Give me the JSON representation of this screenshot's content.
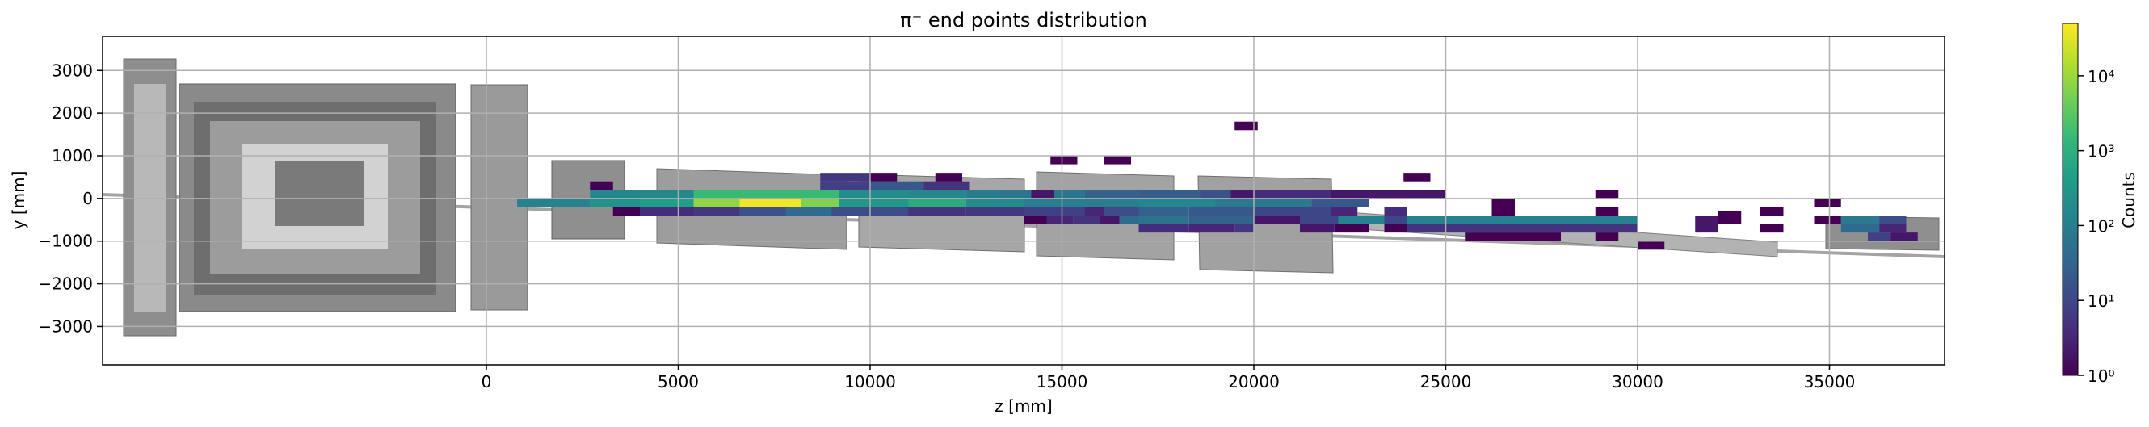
{
  "chart_data": {
    "type": "heatmap",
    "title": "π⁻ end points distribution",
    "xlabel": "z [mm]",
    "ylabel": "y [mm]",
    "xlim": [
      -10000,
      38000
    ],
    "ylim": [
      -3900,
      3800
    ],
    "x_ticks": [
      0,
      5000,
      10000,
      15000,
      20000,
      25000,
      30000,
      35000
    ],
    "x_tick_labels": [
      "0",
      "5000",
      "10000",
      "15000",
      "20000",
      "25000",
      "30000",
      "35000"
    ],
    "y_ticks": [
      3000,
      2000,
      1000,
      0,
      -1000,
      -2000,
      -3000
    ],
    "y_tick_labels": [
      "3000",
      "2000",
      "1000",
      "0",
      "−1000",
      "−2000",
      "−3000"
    ],
    "grid": true,
    "colorbar": {
      "label": "Counts",
      "scale": "log",
      "colormap": "viridis",
      "range": [
        1,
        50000
      ],
      "ticks": [
        1,
        10,
        100,
        1000,
        10000
      ],
      "tick_labels": [
        "10⁰",
        "10¹",
        "10²",
        "10³",
        "10⁴"
      ]
    },
    "background": "detector geometry outline (grey)",
    "cells": [
      {
        "z0": 2700,
        "z1": 3300,
        "y0": 200,
        "y1": 400,
        "counts": 1
      },
      {
        "z0": 3300,
        "z1": 3900,
        "y0": 0,
        "y1": 200,
        "counts": 3
      },
      {
        "z0": 3300,
        "z1": 4000,
        "y0": -400,
        "y1": -200,
        "counts": 1
      },
      {
        "z0": 4000,
        "z1": 5400,
        "y0": -400,
        "y1": -200,
        "counts": 4
      },
      {
        "z0": 5400,
        "z1": 6600,
        "y0": -400,
        "y1": -200,
        "counts": 6
      },
      {
        "z0": 6600,
        "z1": 7800,
        "y0": -400,
        "y1": -200,
        "counts": 15
      },
      {
        "z0": 7800,
        "z1": 9000,
        "y0": -400,
        "y1": -200,
        "counts": 40
      },
      {
        "z0": 9000,
        "z1": 11000,
        "y0": -400,
        "y1": -200,
        "counts": 12
      },
      {
        "z0": 11000,
        "z1": 12500,
        "y0": -400,
        "y1": -200,
        "counts": 5
      },
      {
        "z0": 800,
        "z1": 2700,
        "y0": -200,
        "y1": 0,
        "counts": 120
      },
      {
        "z0": 2700,
        "z1": 4000,
        "y0": -200,
        "y1": 0,
        "counts": 250
      },
      {
        "z0": 4000,
        "z1": 5400,
        "y0": -200,
        "y1": 0,
        "counts": 400
      },
      {
        "z0": 5400,
        "z1": 6600,
        "y0": -200,
        "y1": 0,
        "counts": 8000
      },
      {
        "z0": 6600,
        "z1": 8200,
        "y0": -200,
        "y1": 0,
        "counts": 40000
      },
      {
        "z0": 8200,
        "z1": 9200,
        "y0": -200,
        "y1": 0,
        "counts": 6000
      },
      {
        "z0": 9200,
        "z1": 11000,
        "y0": -200,
        "y1": 0,
        "counts": 300
      },
      {
        "z0": 11000,
        "z1": 12500,
        "y0": -200,
        "y1": 0,
        "counts": 800
      },
      {
        "z0": 12500,
        "z1": 14000,
        "y0": -200,
        "y1": 0,
        "counts": 200
      },
      {
        "z0": 14000,
        "z1": 17000,
        "y0": -200,
        "y1": 0,
        "counts": 100
      },
      {
        "z0": 17000,
        "z1": 19000,
        "y0": -200,
        "y1": 0,
        "counts": 150
      },
      {
        "z0": 19000,
        "z1": 21500,
        "y0": -200,
        "y1": 0,
        "counts": 80
      },
      {
        "z0": 21500,
        "z1": 23000,
        "y0": -200,
        "y1": 0,
        "counts": 20
      },
      {
        "z0": 2700,
        "z1": 5400,
        "y0": 0,
        "y1": 200,
        "counts": 150
      },
      {
        "z0": 5400,
        "z1": 9200,
        "y0": 0,
        "y1": 200,
        "counts": 1500
      },
      {
        "z0": 9200,
        "z1": 11000,
        "y0": 0,
        "y1": 200,
        "counts": 200
      },
      {
        "z0": 11000,
        "z1": 12500,
        "y0": 0,
        "y1": 200,
        "counts": 150
      },
      {
        "z0": 12500,
        "z1": 13400,
        "y0": 0,
        "y1": 200,
        "counts": 90
      },
      {
        "z0": 13400,
        "z1": 15600,
        "y0": 0,
        "y1": 200,
        "counts": 70
      },
      {
        "z0": 15600,
        "z1": 17000,
        "y0": 0,
        "y1": 200,
        "counts": 30
      },
      {
        "z0": 17000,
        "z1": 18600,
        "y0": 0,
        "y1": 200,
        "counts": 25
      },
      {
        "z0": 18600,
        "z1": 20000,
        "y0": 0,
        "y1": 200,
        "counts": 15
      },
      {
        "z0": 20000,
        "z1": 22000,
        "y0": 0,
        "y1": 200,
        "counts": 4
      },
      {
        "z0": 22000,
        "z1": 25000,
        "y0": 0,
        "y1": 200,
        "counts": 2
      },
      {
        "z0": 8700,
        "z1": 10000,
        "y0": 200,
        "y1": 400,
        "counts": 8
      },
      {
        "z0": 10000,
        "z1": 11400,
        "y0": 200,
        "y1": 400,
        "counts": 20
      },
      {
        "z0": 11400,
        "z1": 12600,
        "y0": 200,
        "y1": 400,
        "counts": 5
      },
      {
        "z0": 8700,
        "z1": 10000,
        "y0": 400,
        "y1": 600,
        "counts": 6
      },
      {
        "z0": 10000,
        "z1": 10700,
        "y0": 400,
        "y1": 600,
        "counts": 1
      },
      {
        "z0": 11700,
        "z1": 12400,
        "y0": 400,
        "y1": 600,
        "counts": 1
      },
      {
        "z0": 14200,
        "z1": 14800,
        "y0": 0,
        "y1": 200,
        "counts": 2
      },
      {
        "z0": 19400,
        "z1": 20000,
        "y0": 0,
        "y1": 200,
        "counts": 2
      },
      {
        "z0": 14700,
        "z1": 15400,
        "y0": 800,
        "y1": 1000,
        "counts": 1
      },
      {
        "z0": 16100,
        "z1": 16800,
        "y0": 800,
        "y1": 1000,
        "counts": 1
      },
      {
        "z0": 19500,
        "z1": 20100,
        "y0": 1600,
        "y1": 1800,
        "counts": 1
      },
      {
        "z0": 23900,
        "z1": 24600,
        "y0": 400,
        "y1": 600,
        "counts": 1
      },
      {
        "z0": 28900,
        "z1": 29500,
        "y0": 0,
        "y1": 200,
        "counts": 1
      },
      {
        "z0": 12500,
        "z1": 14000,
        "y0": -400,
        "y1": -200,
        "counts": 6
      },
      {
        "z0": 14000,
        "z1": 15600,
        "y0": -400,
        "y1": -200,
        "counts": 8
      },
      {
        "z0": 15600,
        "z1": 16100,
        "y0": -400,
        "y1": -200,
        "counts": 3
      },
      {
        "z0": 16100,
        "z1": 17000,
        "y0": -400,
        "y1": -200,
        "counts": 12
      },
      {
        "z0": 17000,
        "z1": 18300,
        "y0": -400,
        "y1": -200,
        "counts": 30
      },
      {
        "z0": 18300,
        "z1": 20000,
        "y0": -400,
        "y1": -200,
        "counts": 20
      },
      {
        "z0": 20000,
        "z1": 22000,
        "y0": -400,
        "y1": -200,
        "counts": 10
      },
      {
        "z0": 22000,
        "z1": 22700,
        "y0": -400,
        "y1": -200,
        "counts": 3
      },
      {
        "z0": 14000,
        "z1": 14600,
        "y0": -600,
        "y1": -400,
        "counts": 1
      },
      {
        "z0": 14600,
        "z1": 15300,
        "y0": -600,
        "y1": -400,
        "counts": 3
      },
      {
        "z0": 15300,
        "z1": 16000,
        "y0": -600,
        "y1": -400,
        "counts": 5
      },
      {
        "z0": 16000,
        "z1": 16500,
        "y0": -600,
        "y1": -400,
        "counts": 2
      },
      {
        "z0": 16500,
        "z1": 17000,
        "y0": -600,
        "y1": -400,
        "counts": 40
      },
      {
        "z0": 17000,
        "z1": 18300,
        "y0": -600,
        "y1": -400,
        "counts": 60
      },
      {
        "z0": 18300,
        "z1": 20000,
        "y0": -600,
        "y1": -400,
        "counts": 30
      },
      {
        "z0": 20000,
        "z1": 21200,
        "y0": -600,
        "y1": -400,
        "counts": 2
      },
      {
        "z0": 21200,
        "z1": 22200,
        "y0": -600,
        "y1": -400,
        "counts": 10
      },
      {
        "z0": 22200,
        "z1": 23400,
        "y0": -600,
        "y1": -400,
        "counts": 120
      },
      {
        "z0": 17000,
        "z1": 18300,
        "y0": -800,
        "y1": -600,
        "counts": 4
      },
      {
        "z0": 18300,
        "z1": 19500,
        "y0": -800,
        "y1": -600,
        "counts": 3
      },
      {
        "z0": 19500,
        "z1": 20000,
        "y0": -800,
        "y1": -600,
        "counts": 6
      },
      {
        "z0": 21200,
        "z1": 22100,
        "y0": -800,
        "y1": -600,
        "counts": 2
      },
      {
        "z0": 22100,
        "z1": 23000,
        "y0": -800,
        "y1": -600,
        "counts": 1
      },
      {
        "z0": 23400,
        "z1": 24000,
        "y0": -400,
        "y1": -200,
        "counts": 4
      },
      {
        "z0": 23400,
        "z1": 24000,
        "y0": -600,
        "y1": -400,
        "counts": 10
      },
      {
        "z0": 23400,
        "z1": 24000,
        "y0": -800,
        "y1": -600,
        "counts": 1
      },
      {
        "z0": 24000,
        "z1": 30000,
        "y0": -600,
        "y1": -400,
        "counts": 120
      },
      {
        "z0": 24000,
        "z1": 30000,
        "y0": -800,
        "y1": -600,
        "counts": 5
      },
      {
        "z0": 26200,
        "z1": 26800,
        "y0": -400,
        "y1": -200,
        "counts": 1
      },
      {
        "z0": 26200,
        "z1": 26800,
        "y0": -200,
        "y1": 0,
        "counts": 1
      },
      {
        "z0": 25500,
        "z1": 28000,
        "y0": -1000,
        "y1": -800,
        "counts": 1
      },
      {
        "z0": 28900,
        "z1": 29500,
        "y0": -400,
        "y1": -200,
        "counts": 1
      },
      {
        "z0": 28900,
        "z1": 29500,
        "y0": -1000,
        "y1": -800,
        "counts": 1
      },
      {
        "z0": 30000,
        "z1": 30700,
        "y0": -1200,
        "y1": -1000,
        "counts": 1
      },
      {
        "z0": 31500,
        "z1": 32100,
        "y0": -600,
        "y1": -400,
        "counts": 2
      },
      {
        "z0": 31500,
        "z1": 32100,
        "y0": -800,
        "y1": -600,
        "counts": 2
      },
      {
        "z0": 32100,
        "z1": 32700,
        "y0": -600,
        "y1": -300,
        "counts": 1
      },
      {
        "z0": 33200,
        "z1": 33800,
        "y0": -400,
        "y1": -200,
        "counts": 1
      },
      {
        "z0": 33200,
        "z1": 33800,
        "y0": -800,
        "y1": -600,
        "counts": 1
      },
      {
        "z0": 34600,
        "z1": 35300,
        "y0": -200,
        "y1": 0,
        "counts": 1
      },
      {
        "z0": 34600,
        "z1": 35300,
        "y0": -600,
        "y1": -400,
        "counts": 1
      },
      {
        "z0": 35300,
        "z1": 36300,
        "y0": -600,
        "y1": -400,
        "counts": 80
      },
      {
        "z0": 35300,
        "z1": 36300,
        "y0": -800,
        "y1": -600,
        "counts": 40
      },
      {
        "z0": 36300,
        "z1": 37000,
        "y0": -600,
        "y1": -400,
        "counts": 12
      },
      {
        "z0": 36300,
        "z1": 37000,
        "y0": -800,
        "y1": -600,
        "counts": 3
      },
      {
        "z0": 36600,
        "z1": 37300,
        "y0": -1000,
        "y1": -800,
        "counts": 2
      },
      {
        "z0": 36000,
        "z1": 36600,
        "y0": -1000,
        "y1": -800,
        "counts": 8
      }
    ]
  }
}
